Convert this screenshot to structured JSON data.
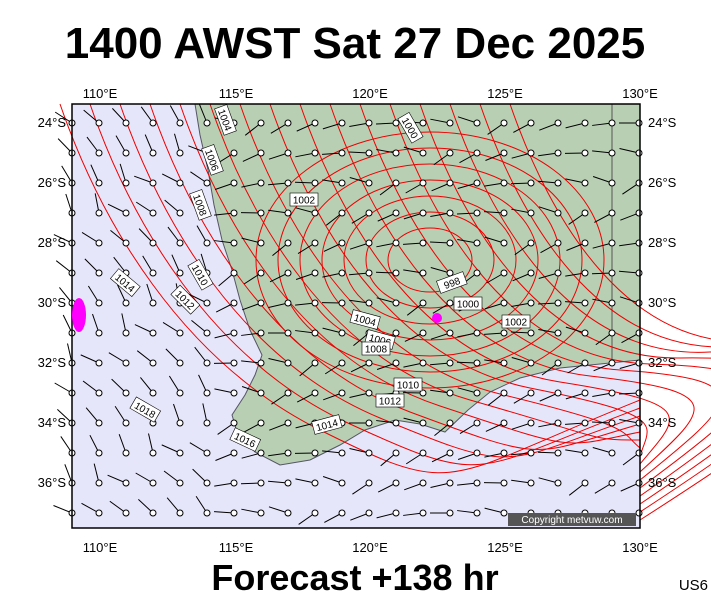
{
  "header": {
    "title": "1400 AWST Sat 27 Dec 2025"
  },
  "map": {
    "lon_labels": [
      "110°E",
      "115°E",
      "120°E",
      "125°E",
      "130°E"
    ],
    "lat_labels": [
      "24°S",
      "26°S",
      "28°S",
      "30°S",
      "32°S",
      "34°S",
      "36°S"
    ],
    "isobar_labels": [
      "1004",
      "1006",
      "1008",
      "1000",
      "1002",
      "998",
      "1000",
      "1002",
      "1004",
      "1006",
      "1008",
      "1010",
      "1012",
      "1014",
      "1016",
      "1018",
      "1012",
      "1010",
      "1014"
    ],
    "copyright": "Copyright metvuw.com"
  },
  "footer": {
    "forecast": "Forecast +138 hr",
    "code": "US6"
  }
}
